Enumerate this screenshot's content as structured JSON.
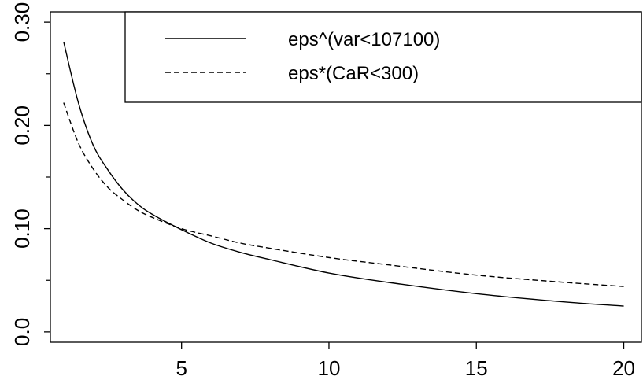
{
  "chart_data": {
    "type": "line",
    "title": "",
    "xlabel": "",
    "ylabel": "",
    "xlim": [
      0.55,
      20.6
    ],
    "ylim": [
      -0.01,
      0.31
    ],
    "x_ticks": [
      5,
      10,
      15,
      20
    ],
    "x_tick_labels": [
      "5",
      "10",
      "15",
      "20"
    ],
    "y_ticks": [
      0.0,
      0.1,
      0.2,
      0.3
    ],
    "y_tick_labels": [
      "0.0",
      "0.10",
      "0.20",
      "0.30"
    ],
    "y_minor_ticks": [
      0.05,
      0.15,
      0.25
    ],
    "grid": false,
    "legend": "top-right",
    "series": [
      {
        "name": "eps^(var<107100)",
        "style": "solid",
        "color": "#000000",
        "x": [
          1,
          1.5,
          2,
          2.5,
          3,
          3.5,
          4,
          5,
          6,
          7,
          8,
          10,
          12,
          15,
          18,
          20
        ],
        "y": [
          0.281,
          0.222,
          0.181,
          0.157,
          0.138,
          0.124,
          0.114,
          0.099,
          0.086,
          0.077,
          0.07,
          0.057,
          0.048,
          0.037,
          0.029,
          0.025
        ]
      },
      {
        "name": "eps*(CaR<300)",
        "style": "dashed",
        "color": "#000000",
        "x": [
          1,
          1.5,
          2,
          2.5,
          3,
          3.5,
          4,
          5,
          6,
          7,
          8,
          10,
          12,
          15,
          18,
          20
        ],
        "y": [
          0.222,
          0.183,
          0.158,
          0.14,
          0.128,
          0.118,
          0.111,
          0.1,
          0.093,
          0.086,
          0.081,
          0.072,
          0.065,
          0.055,
          0.048,
          0.044
        ]
      }
    ]
  }
}
